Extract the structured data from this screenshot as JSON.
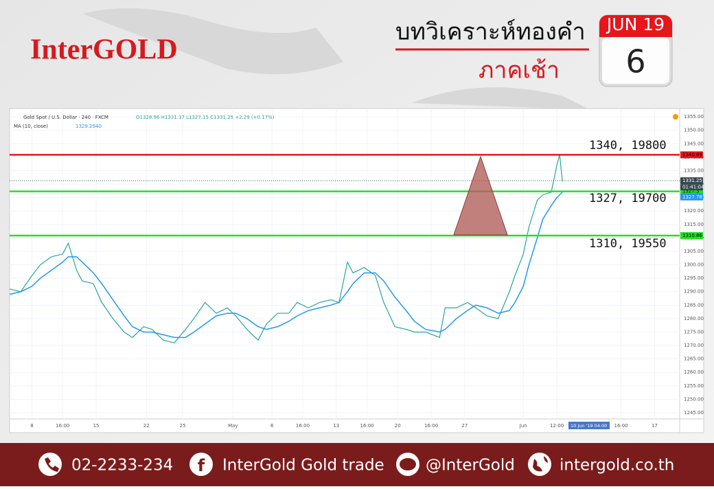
{
  "header": {
    "logo": "InterGOLD",
    "title": "บทวิเคราะห์ทองคำ",
    "subtitle": "ภาคเช้า",
    "calendar_month": "JUN 19",
    "calendar_day": "6"
  },
  "chart_data": {
    "type": "line",
    "title": "Gold Spot / U.S. Dollar · 240 · FXCM",
    "ohlc_text": "O1328.96 H1331.37 L1327.15 C1331.25 +2.29 (+0.17%)",
    "indicator": "MA (10, close)",
    "indicator_value": "1329.2940",
    "cursor_label": "10 Jun '19  04:00",
    "countdown": "01:41:04",
    "x": [
      0,
      4,
      8,
      11,
      15,
      19,
      21,
      24,
      26,
      30,
      33,
      37,
      41,
      44,
      48,
      51,
      55,
      59,
      63,
      66,
      70,
      74,
      78,
      81,
      85,
      89,
      92,
      96,
      100,
      103,
      107,
      111,
      115,
      118,
      121,
      123,
      127,
      131,
      134,
      138,
      142,
      145,
      149,
      154,
      156,
      160,
      164,
      167,
      171,
      175,
      179,
      181,
      184,
      186,
      189,
      191,
      194,
      196,
      197,
      198
    ],
    "series": [
      {
        "name": "Gold Spot / U.S. Dollar",
        "color": "#26a69a",
        "values": [
          1291,
          1290,
          1296,
          1300,
          1303,
          1304,
          1308,
          1298,
          1294,
          1293,
          1286,
          1280,
          1275,
          1273,
          1277,
          1276,
          1272,
          1271,
          1276,
          1280,
          1286,
          1282,
          1284,
          1281,
          1276,
          1272,
          1278,
          1282,
          1282,
          1286,
          1284,
          1286,
          1287,
          1286,
          1301,
          1297,
          1299,
          1296,
          1286,
          1277,
          1276,
          1275,
          1275,
          1273,
          1284,
          1284,
          1286,
          1284,
          1281,
          1280,
          1290,
          1296,
          1304,
          1314,
          1324,
          1326,
          1327,
          1337,
          1341,
          1331
        ]
      },
      {
        "name": "MA (10, close)",
        "color": "#2196f3",
        "values": [
          1289,
          1290,
          1292,
          1295,
          1298,
          1301,
          1303,
          1303,
          1301,
          1297,
          1293,
          1287,
          1281,
          1277,
          1275,
          1275,
          1274,
          1273,
          1273,
          1275,
          1278,
          1281,
          1282,
          1282,
          1280,
          1277,
          1276,
          1277,
          1279,
          1281,
          1283,
          1284,
          1285,
          1286,
          1290,
          1293,
          1297,
          1297,
          1294,
          1288,
          1283,
          1279,
          1276,
          1275,
          1276,
          1280,
          1283,
          1285,
          1284,
          1282,
          1283,
          1286,
          1292,
          1300,
          1310,
          1317,
          1322,
          1325,
          1326,
          1327
        ]
      }
    ],
    "xlim": [
      0,
      240
    ],
    "xticks": [
      {
        "value": 8,
        "label": "8"
      },
      {
        "value": 19,
        "label": "16:00"
      },
      {
        "value": 31,
        "label": "15"
      },
      {
        "value": 49,
        "label": "22"
      },
      {
        "value": 62,
        "label": "25"
      },
      {
        "value": 80,
        "label": "May"
      },
      {
        "value": 94,
        "label": "6"
      },
      {
        "value": 105,
        "label": "16:00"
      },
      {
        "value": 117,
        "label": "13"
      },
      {
        "value": 128,
        "label": "16:00"
      },
      {
        "value": 139,
        "label": "20"
      },
      {
        "value": 151,
        "label": "16:00"
      },
      {
        "value": 163,
        "label": "27"
      },
      {
        "value": 184,
        "label": "Jun"
      },
      {
        "value": 196,
        "label": "12:00"
      },
      {
        "value": 219,
        "label": "16:00"
      },
      {
        "value": 231,
        "label": "17"
      }
    ],
    "ylim": [
      1242.7,
      1358.1
    ],
    "yticks": [
      {
        "value": 1245,
        "label": "1245.00"
      },
      {
        "value": 1250,
        "label": "1250.00"
      },
      {
        "value": 1255,
        "label": "1255.00"
      },
      {
        "value": 1260,
        "label": "1260.00"
      },
      {
        "value": 1265,
        "label": "1265.00"
      },
      {
        "value": 1270,
        "label": "1270.00"
      },
      {
        "value": 1275,
        "label": "1275.00"
      },
      {
        "value": 1280,
        "label": "1280.00"
      },
      {
        "value": 1285,
        "label": "1285.00"
      },
      {
        "value": 1290,
        "label": "1290.00"
      },
      {
        "value": 1295,
        "label": "1295.00"
      },
      {
        "value": 1300,
        "label": "1300.00"
      },
      {
        "value": 1305,
        "label": "1305.00"
      },
      {
        "value": 1310,
        "label": "1310.00"
      },
      {
        "value": 1315,
        "label": "1315.00"
      },
      {
        "value": 1320,
        "label": "1320.00"
      },
      {
        "value": 1325,
        "label": "1325.00"
      },
      {
        "value": 1330,
        "label": "1330.00"
      },
      {
        "value": 1335,
        "label": "1335.00"
      },
      {
        "value": 1340,
        "label": "1340.00"
      },
      {
        "value": 1345,
        "label": "1345.00"
      },
      {
        "value": 1350,
        "label": "1350.00"
      },
      {
        "value": 1355,
        "label": "1355.00"
      }
    ],
    "hlines": [
      {
        "value": 1340.89,
        "color": "#e8151b"
      },
      {
        "value": 1327.3,
        "color": "#22e022"
      },
      {
        "value": 1310.86,
        "color": "#22e022"
      }
    ],
    "price_tags": [
      {
        "value": 1331.25,
        "color": "#37474f"
      },
      {
        "value": 1327.78,
        "color": "#2196f3"
      }
    ],
    "annotations": [
      "1340, 19800",
      "1327, 19700",
      "1310, 19550"
    ]
  },
  "footer": {
    "phone": "02-2233-234",
    "facebook": "InterGold Gold trade",
    "line": "@InterGold",
    "website": "intergold.co.th"
  }
}
